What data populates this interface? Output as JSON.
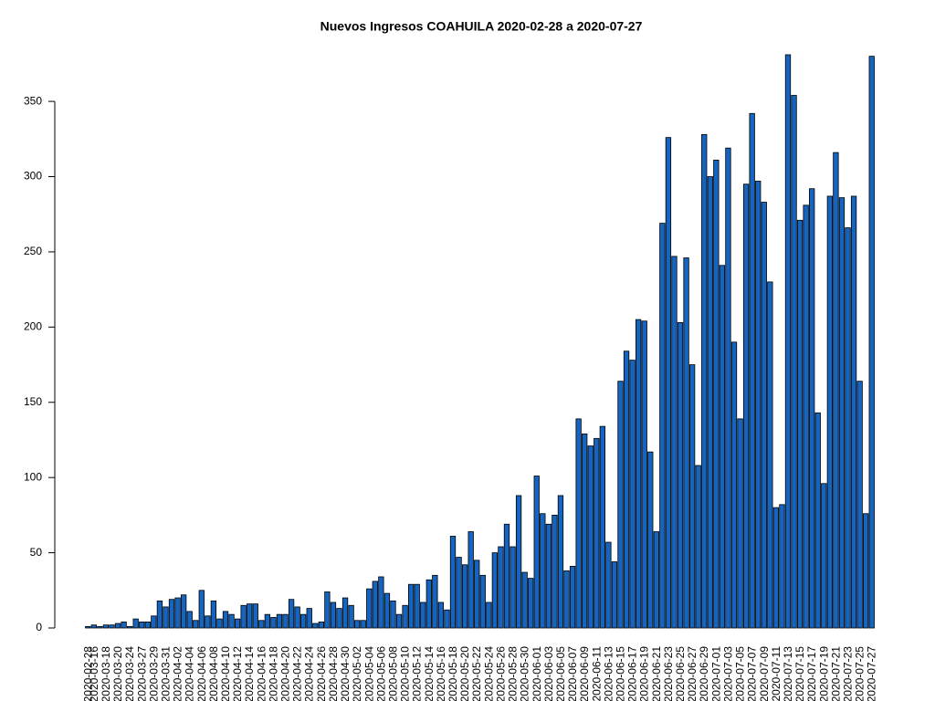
{
  "chart_data": {
    "type": "bar",
    "title": "Nuevos Ingresos COAHUILA 2020-02-28 a 2020-07-27",
    "categories": [
      "2020-02-28",
      "2020-03-16",
      null,
      "2020-03-18",
      null,
      "2020-03-20",
      null,
      "2020-03-24",
      null,
      "2020-03-27",
      null,
      "2020-03-29",
      null,
      "2020-03-31",
      null,
      "2020-04-02",
      null,
      "2020-04-04",
      null,
      "2020-04-06",
      null,
      "2020-04-08",
      null,
      "2020-04-10",
      null,
      "2020-04-12",
      null,
      "2020-04-14",
      null,
      "2020-04-16",
      null,
      "2020-04-18",
      null,
      "2020-04-20",
      null,
      "2020-04-22",
      null,
      "2020-04-24",
      null,
      "2020-04-26",
      null,
      "2020-04-28",
      null,
      "2020-04-30",
      null,
      "2020-05-02",
      null,
      "2020-05-04",
      null,
      "2020-05-06",
      null,
      "2020-05-08",
      null,
      "2020-05-10",
      null,
      "2020-05-12",
      null,
      "2020-05-14",
      null,
      "2020-05-16",
      null,
      "2020-05-18",
      null,
      "2020-05-20",
      null,
      "2020-05-22",
      null,
      "2020-05-24",
      null,
      "2020-05-26",
      null,
      "2020-05-28",
      null,
      "2020-05-30",
      null,
      "2020-06-01",
      null,
      "2020-06-03",
      null,
      "2020-06-05",
      null,
      "2020-06-07",
      null,
      "2020-06-09",
      null,
      "2020-06-11",
      null,
      "2020-06-13",
      null,
      "2020-06-15",
      null,
      "2020-06-17",
      null,
      "2020-06-19",
      null,
      "2020-06-21",
      null,
      "2020-06-23",
      null,
      "2020-06-25",
      null,
      "2020-06-27",
      null,
      "2020-06-29",
      null,
      "2020-07-01",
      null,
      "2020-07-03",
      null,
      "2020-07-05",
      null,
      "2020-07-07",
      null,
      "2020-07-09",
      null,
      "2020-07-11",
      null,
      "2020-07-13",
      null,
      "2020-07-15",
      null,
      "2020-07-17",
      null,
      "2020-07-19",
      null,
      "2020-07-21",
      null,
      "2020-07-23",
      null,
      "2020-07-25",
      null,
      "2020-07-27"
    ],
    "values": [
      1,
      2,
      1,
      2,
      2,
      3,
      4,
      1,
      6,
      4,
      4,
      8,
      18,
      14,
      19,
      20,
      22,
      11,
      5,
      25,
      8,
      18,
      6,
      11,
      9,
      6,
      15,
      16,
      16,
      5,
      9,
      7,
      9,
      9,
      19,
      14,
      9,
      13,
      3,
      4,
      24,
      17,
      13,
      20,
      15,
      5,
      5,
      26,
      31,
      34,
      23,
      18,
      9,
      15,
      29,
      29,
      17,
      32,
      35,
      17,
      12,
      61,
      47,
      42,
      64,
      45,
      35,
      17,
      50,
      54,
      69,
      54,
      88,
      37,
      33,
      101,
      76,
      69,
      75,
      88,
      38,
      41,
      139,
      129,
      121,
      126,
      134,
      57,
      44,
      164,
      184,
      178,
      205,
      204,
      117,
      64,
      269,
      326,
      247,
      203,
      246,
      175,
      108,
      328,
      300,
      311,
      241,
      319,
      190,
      139,
      295,
      342,
      297,
      283,
      230,
      80,
      82,
      381,
      354,
      271,
      281,
      292,
      143,
      96,
      287,
      316,
      286,
      266,
      287,
      164,
      76,
      380
    ],
    "color": "#1565c0",
    "ylim": [
      0,
      381
    ],
    "yticks": [
      0,
      50,
      100,
      150,
      200,
      250,
      300,
      350
    ]
  }
}
